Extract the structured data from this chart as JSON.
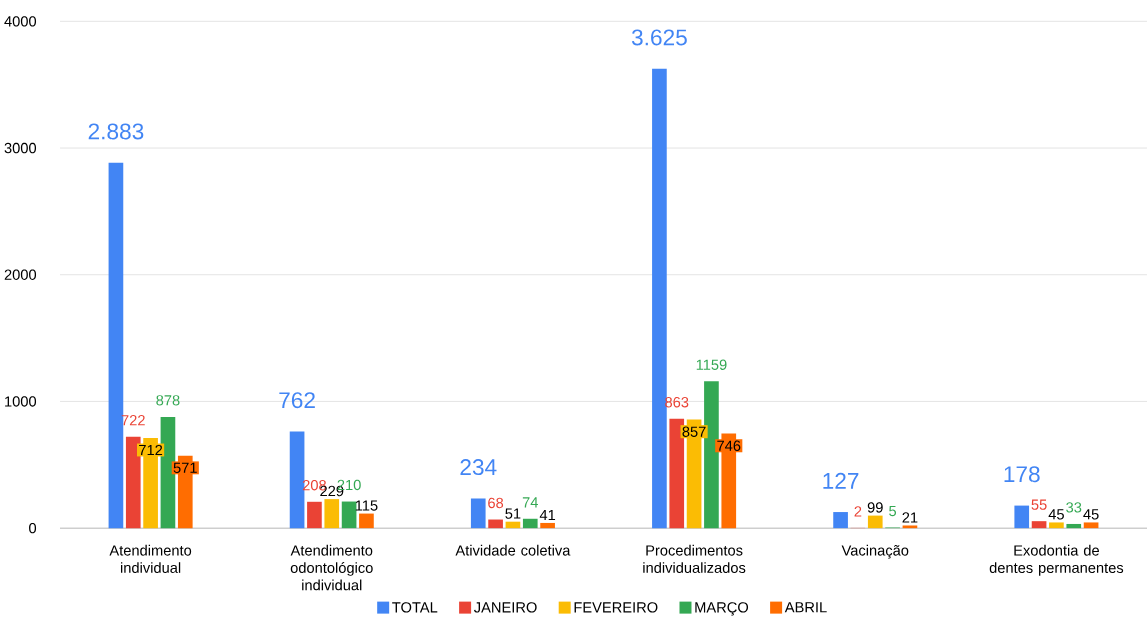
{
  "chart_data": {
    "type": "bar",
    "categories": [
      "Atendimento individual",
      "Atendimento odontológico individual",
      "Atividade coletiva",
      "Procedimentos individualizados",
      "Vacinação",
      "Exodontia de dentes permanentes"
    ],
    "series": [
      {
        "name": "TOTAL",
        "color": "#4285f4",
        "values": [
          2883,
          762,
          234,
          3625,
          127,
          178
        ],
        "value_labels": [
          "2.883",
          "762",
          "234",
          "3.625",
          "127",
          "178"
        ]
      },
      {
        "name": "JANEIRO",
        "color": "#ea4335",
        "values": [
          722,
          208,
          68,
          863,
          2,
          55
        ],
        "value_labels": [
          "722",
          "208",
          "68",
          "863",
          "2",
          "55"
        ]
      },
      {
        "name": "FEVEREIRO",
        "color": "#fbbc04",
        "values": [
          712,
          229,
          51,
          857,
          99,
          45
        ],
        "value_labels": [
          "712",
          "229",
          "51",
          "857",
          "99",
          "45"
        ]
      },
      {
        "name": "MARÇO",
        "color": "#34a853",
        "values": [
          878,
          210,
          74,
          1159,
          5,
          33
        ],
        "value_labels": [
          "878",
          "210",
          "74",
          "1159",
          "5",
          "33"
        ]
      },
      {
        "name": "ABRIL",
        "color": "#ff6d01",
        "values": [
          571,
          115,
          41,
          746,
          21,
          45
        ],
        "value_labels": [
          "571",
          "115",
          "41",
          "746",
          "21",
          "45"
        ]
      }
    ],
    "ylim": [
      0,
      4000
    ],
    "yticks": [
      0,
      1000,
      2000,
      3000,
      4000
    ],
    "grid": "y",
    "legend": "bottom"
  }
}
